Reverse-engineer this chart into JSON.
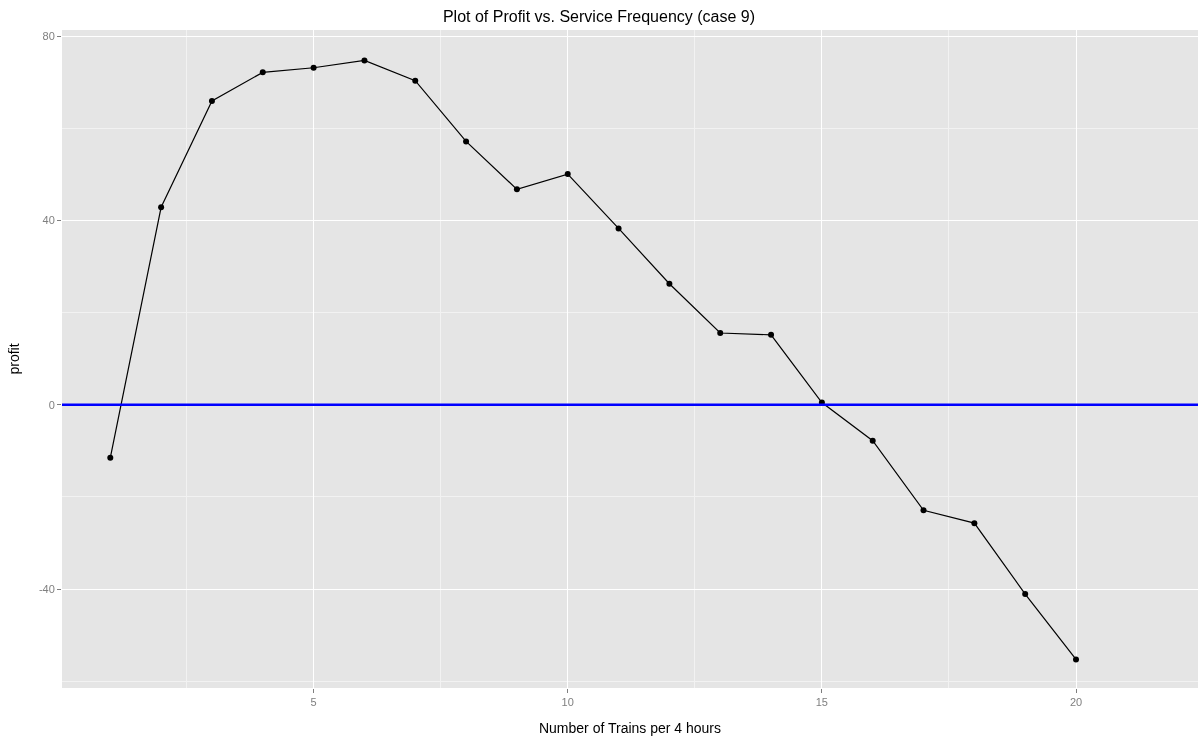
{
  "chart_data": {
    "type": "line",
    "title": "Plot of Profit vs. Service Frequency (case 9)",
    "xlabel": "Number of Trains per 4 hours",
    "ylabel": "profit",
    "x": [
      1,
      2,
      3,
      4,
      5,
      6,
      7,
      8,
      9,
      10,
      11,
      12,
      13,
      14,
      15,
      16,
      17,
      18,
      19,
      20
    ],
    "series": [
      {
        "color": "#000000",
        "values": [
          -11.5,
          42.9,
          66.0,
          72.2,
          73.2,
          74.8,
          70.4,
          57.2,
          46.8,
          50.1,
          38.3,
          26.3,
          15.6,
          15.2,
          0.5,
          -7.8,
          -22.9,
          -25.7,
          -41.1,
          -55.3
        ]
      }
    ],
    "xlim": [
      0.05,
      22.4
    ],
    "xticks": [
      5,
      10,
      15,
      20
    ],
    "ylim": [
      -61.5,
      81.4
    ],
    "yticks": [
      -40,
      0,
      40,
      80
    ],
    "ref_lines": [
      {
        "axis": "y",
        "value": 0,
        "color": "#0000ff",
        "line_style": "solid"
      }
    ],
    "grid": true,
    "marker": "circle",
    "line_style": "solid"
  }
}
